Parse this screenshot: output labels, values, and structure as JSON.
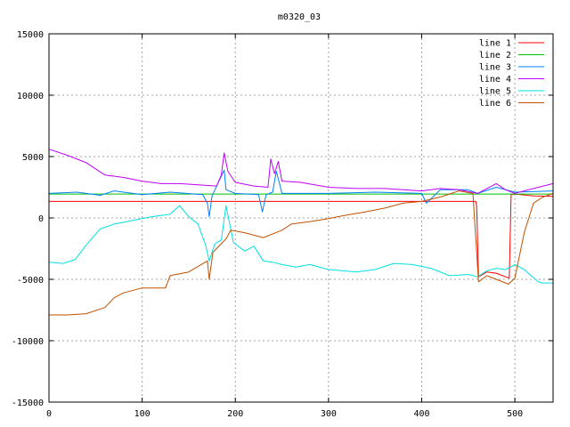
{
  "chart_data": {
    "type": "line",
    "title": "m0320_03",
    "xlabel": "",
    "ylabel": "",
    "xlim": [
      0,
      541
    ],
    "ylim": [
      -15000,
      15000
    ],
    "xticks": [
      0,
      100,
      200,
      300,
      400,
      500
    ],
    "yticks": [
      -15000,
      -10000,
      -5000,
      0,
      5000,
      10000,
      15000
    ],
    "grid": true,
    "legend_position": "top-right",
    "series": [
      {
        "name": "line 1",
        "color": "#ff0000",
        "x": [
          0,
          458,
          459,
          461,
          470,
          480,
          490,
          494,
          496,
          500,
          520,
          541
        ],
        "y": [
          1350,
          1350,
          1000,
          -4800,
          -4400,
          -4500,
          -4800,
          -4900,
          1900,
          1950,
          1800,
          1750
        ]
      },
      {
        "name": "line 2",
        "color": "#00c000",
        "x": [
          0,
          541
        ],
        "y": [
          1950,
          1950
        ]
      },
      {
        "name": "line 3",
        "color": "#0080ff",
        "x": [
          0,
          30,
          55,
          70,
          100,
          130,
          165,
          170,
          172,
          175,
          188,
          190,
          200,
          225,
          229,
          233,
          240,
          244,
          250,
          300,
          350,
          400,
          405,
          420,
          450,
          460,
          480,
          500,
          541
        ],
        "y": [
          2000,
          2100,
          1850,
          2200,
          1900,
          2100,
          1900,
          1200,
          100,
          1800,
          3900,
          2300,
          2000,
          1900,
          500,
          1900,
          2100,
          3800,
          2000,
          2000,
          2100,
          2000,
          1200,
          2300,
          2300,
          2000,
          2500,
          2100,
          2200
        ]
      },
      {
        "name": "line 4",
        "color": "#c000ff",
        "x": [
          0,
          20,
          40,
          60,
          80,
          100,
          120,
          140,
          160,
          180,
          185,
          188,
          192,
          200,
          220,
          235,
          238,
          242,
          246,
          250,
          270,
          300,
          330,
          360,
          400,
          420,
          440,
          460,
          470,
          480,
          490,
          500,
          520,
          541
        ],
        "y": [
          5600,
          5100,
          4500,
          3500,
          3300,
          3000,
          2800,
          2800,
          2700,
          2600,
          3500,
          5300,
          3800,
          2900,
          2600,
          2500,
          4800,
          3600,
          4600,
          3000,
          2900,
          2500,
          2400,
          2400,
          2200,
          2400,
          2300,
          2000,
          2400,
          2800,
          2300,
          2000,
          2400,
          2800
        ]
      },
      {
        "name": "line 5",
        "color": "#00e0e0",
        "x": [
          0,
          15,
          28,
          40,
          55,
          70,
          90,
          110,
          130,
          140,
          150,
          160,
          168,
          172,
          178,
          185,
          190,
          198,
          210,
          220,
          230,
          240,
          250,
          265,
          280,
          300,
          330,
          350,
          370,
          390,
          410,
          430,
          450,
          460,
          470,
          480,
          490,
          500,
          510,
          525,
          530,
          541
        ],
        "y": [
          -3600,
          -3700,
          -3400,
          -2200,
          -900,
          -500,
          -200,
          100,
          300,
          1000,
          100,
          -500,
          -2200,
          -3500,
          -2100,
          -1800,
          1000,
          -2000,
          -2700,
          -2300,
          -3500,
          -3600,
          -3800,
          -4000,
          -3800,
          -4200,
          -4400,
          -4200,
          -3700,
          -3800,
          -4100,
          -4700,
          -4600,
          -4800,
          -4300,
          -4100,
          -4200,
          -3800,
          -4200,
          -5200,
          -5300,
          -5300
        ]
      },
      {
        "name": "line 6",
        "color": "#c05000",
        "x": [
          0,
          20,
          40,
          60,
          70,
          80,
          100,
          120,
          125,
          130,
          150,
          170,
          172,
          176,
          190,
          195,
          210,
          230,
          250,
          260,
          280,
          300,
          320,
          340,
          360,
          380,
          400,
          420,
          440,
          455,
          461,
          470,
          480,
          490,
          493,
          500,
          510,
          520,
          530,
          541
        ],
        "y": [
          -7900,
          -7900,
          -7800,
          -7300,
          -6500,
          -6100,
          -5700,
          -5700,
          -5700,
          -4700,
          -4400,
          -3500,
          -5000,
          -2800,
          -1700,
          -1000,
          -1200,
          -1600,
          -1000,
          -500,
          -300,
          -50,
          250,
          500,
          800,
          1200,
          1350,
          1700,
          2200,
          2000,
          -5200,
          -4700,
          -5000,
          -5300,
          -5400,
          -4900,
          -1200,
          1200,
          1700,
          2000
        ]
      }
    ]
  }
}
